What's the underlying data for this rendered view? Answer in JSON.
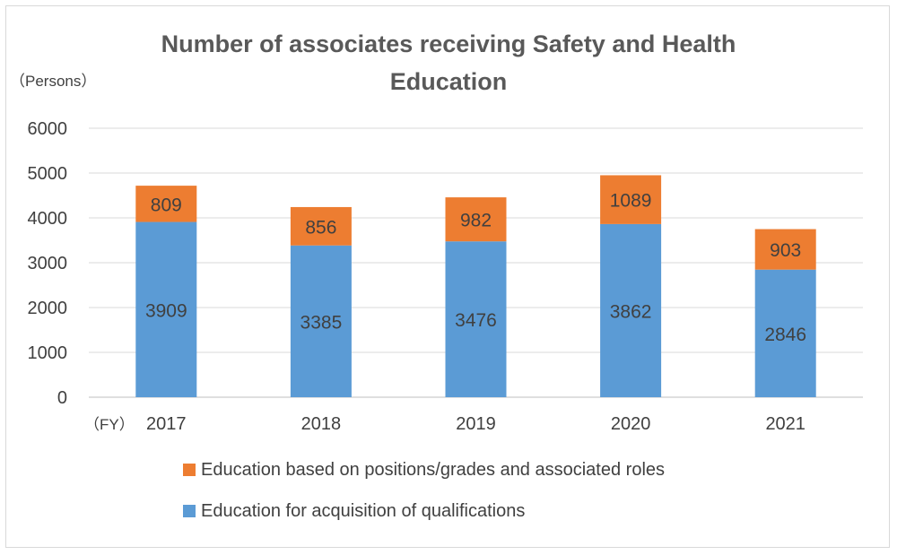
{
  "chart_data": {
    "type": "bar",
    "stacked": true,
    "title": "Number of associates receiving Safety and Health Education",
    "title_lines": [
      "Number of associates receiving Safety and Health",
      "Education"
    ],
    "y_unit_label": "（Persons）",
    "x_unit_label": "（FY）",
    "categories": [
      "2017",
      "2018",
      "2019",
      "2020",
      "2021"
    ],
    "ylim": [
      0,
      6000
    ],
    "yticks": [
      0,
      1000,
      2000,
      3000,
      4000,
      5000,
      6000
    ],
    "grid": true,
    "legend_position": "bottom",
    "series": [
      {
        "name": "Education for acquisition of qualifications",
        "color": "#5b9bd5",
        "values": [
          3909,
          3385,
          3476,
          3862,
          2846
        ]
      },
      {
        "name": "Education based on positions/grades and associated roles",
        "color": "#ed7d31",
        "values": [
          809,
          856,
          982,
          1089,
          903
        ]
      }
    ],
    "legend_order": [
      1,
      0
    ]
  }
}
